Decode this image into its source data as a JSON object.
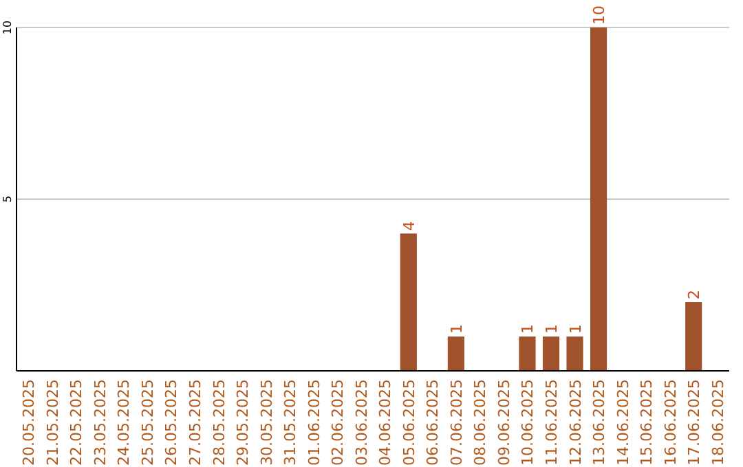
{
  "chart_data": {
    "type": "bar",
    "categories": [
      "20.05.2025",
      "21.05.2025",
      "22.05.2025",
      "23.05.2025",
      "24.05.2025",
      "25.05.2025",
      "26.05.2025",
      "27.05.2025",
      "28.05.2025",
      "29.05.2025",
      "30.05.2025",
      "31.05.2025",
      "01.06.2025",
      "02.06.2025",
      "03.06.2025",
      "04.06.2025",
      "05.06.2025",
      "06.06.2025",
      "07.06.2025",
      "08.06.2025",
      "09.06.2025",
      "10.06.2025",
      "11.06.2025",
      "12.06.2025",
      "13.06.2025",
      "14.06.2025",
      "15.06.2025",
      "16.06.2025",
      "17.06.2025",
      "18.06.2025"
    ],
    "values": [
      0,
      0,
      0,
      0,
      0,
      0,
      0,
      0,
      0,
      0,
      0,
      0,
      0,
      0,
      0,
      0,
      4,
      0,
      1,
      0,
      0,
      1,
      1,
      1,
      10,
      0,
      0,
      0,
      2,
      0
    ],
    "value_labels": [
      null,
      null,
      null,
      null,
      null,
      null,
      null,
      null,
      null,
      null,
      null,
      null,
      null,
      null,
      null,
      null,
      "4",
      null,
      "1",
      null,
      null,
      "1",
      "1",
      "1",
      "10",
      null,
      null,
      null,
      "2",
      null
    ],
    "color": "#a0522d",
    "ylim": [
      0,
      10
    ],
    "yticks": [
      5,
      10
    ],
    "grid": "y"
  }
}
